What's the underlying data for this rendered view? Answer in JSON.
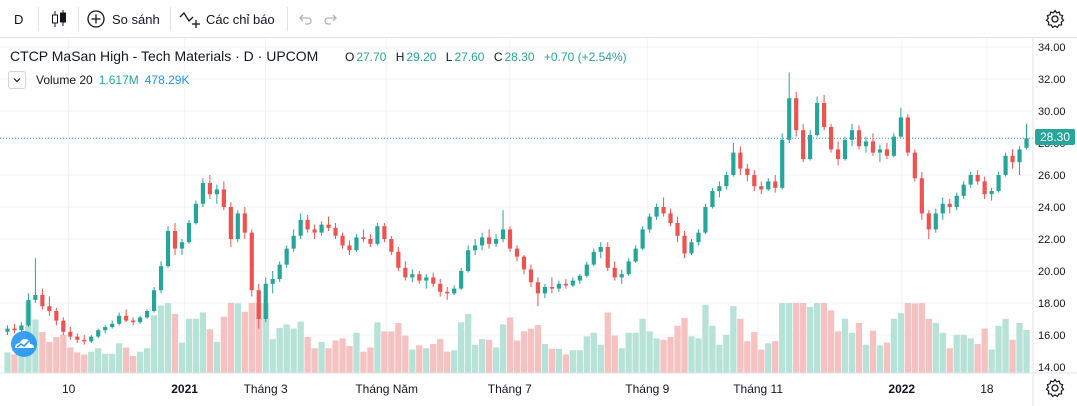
{
  "toolbar": {
    "interval": "D",
    "compare_label": "So sánh",
    "indicators_label": "Các chỉ báo",
    "icons": [
      "candles-icon",
      "plus-circle-icon",
      "indicators-icon",
      "undo-icon",
      "redo-icon",
      "settings-icon"
    ]
  },
  "legend": {
    "title": "CTCP MaSan High - Tech Materials · D · UPCOM",
    "o_label": "O",
    "o": "27.70",
    "h_label": "H",
    "h": "29.20",
    "l_label": "L",
    "l": "27.60",
    "c_label": "C",
    "c": "28.30",
    "change": "+0.70 (+2.54%)",
    "volume_label": "Volume 20",
    "volume_value": "1.617M",
    "volume_ma": "478.29K"
  },
  "price_tag": "28.30",
  "colors": {
    "up": "#26a69a",
    "down": "#ef5350",
    "up_vol": "#b7e2d7",
    "down_vol": "#f6c1c1",
    "grid": "#f0f3fa",
    "axis_text": "#131722"
  },
  "chart_data": {
    "type": "candlestick",
    "y_axis_ticks": [
      "14.00",
      "16.00",
      "18.00",
      "20.00",
      "22.00",
      "24.00",
      "26.00",
      "28.00",
      "30.00",
      "32.00",
      "34.00"
    ],
    "x_axis_ticks": [
      {
        "label": "10",
        "bold": false
      },
      {
        "label": "2021",
        "bold": true
      },
      {
        "label": "Tháng 3",
        "bold": false
      },
      {
        "label": "Tháng Năm",
        "bold": false
      },
      {
        "label": "Tháng 7",
        "bold": false
      },
      {
        "label": "Tháng 9",
        "bold": false
      },
      {
        "label": "Tháng 11",
        "bold": false
      },
      {
        "label": "2022",
        "bold": true
      },
      {
        "label": "18",
        "bold": false
      }
    ],
    "ylim": [
      14,
      34
    ],
    "last_close": 28.3,
    "candles": [
      [
        16.2,
        16.6,
        16.0,
        16.4
      ],
      [
        16.4,
        16.7,
        16.1,
        16.3
      ],
      [
        16.3,
        16.8,
        16.2,
        16.6
      ],
      [
        16.6,
        18.6,
        16.5,
        18.2
      ],
      [
        18.2,
        20.8,
        18.0,
        18.5
      ],
      [
        18.5,
        18.9,
        17.6,
        17.8
      ],
      [
        17.8,
        18.4,
        17.2,
        17.5
      ],
      [
        17.5,
        17.7,
        16.6,
        16.9
      ],
      [
        16.9,
        17.1,
        16.0,
        16.2
      ],
      [
        16.2,
        16.5,
        15.7,
        15.9
      ],
      [
        15.9,
        16.1,
        15.5,
        15.7
      ],
      [
        15.7,
        16.0,
        15.4,
        15.6
      ],
      [
        15.6,
        16.0,
        15.5,
        15.9
      ],
      [
        15.9,
        16.4,
        15.8,
        16.3
      ],
      [
        16.3,
        16.6,
        16.1,
        16.5
      ],
      [
        16.5,
        16.9,
        16.4,
        16.7
      ],
      [
        16.7,
        17.4,
        16.6,
        17.2
      ],
      [
        17.2,
        17.6,
        16.8,
        16.9
      ],
      [
        16.9,
        17.1,
        16.6,
        16.8
      ],
      [
        16.8,
        17.2,
        16.7,
        17.1
      ],
      [
        17.1,
        17.6,
        17.0,
        17.5
      ],
      [
        17.5,
        19.0,
        17.4,
        18.8
      ],
      [
        18.8,
        20.6,
        18.6,
        20.3
      ],
      [
        20.3,
        22.8,
        20.2,
        22.5
      ],
      [
        22.5,
        23.0,
        21.0,
        21.4
      ],
      [
        21.4,
        22.0,
        21.0,
        21.8
      ],
      [
        21.8,
        23.2,
        21.7,
        23.0
      ],
      [
        23.0,
        24.4,
        22.9,
        24.2
      ],
      [
        24.2,
        25.8,
        24.0,
        25.5
      ],
      [
        25.5,
        26.0,
        24.5,
        24.8
      ],
      [
        24.8,
        25.4,
        24.2,
        25.1
      ],
      [
        25.1,
        25.6,
        23.8,
        24.0
      ],
      [
        24.0,
        24.3,
        21.5,
        22.0
      ],
      [
        22.0,
        23.8,
        21.8,
        23.6
      ],
      [
        23.6,
        24.0,
        22.0,
        22.4
      ],
      [
        22.4,
        22.6,
        18.4,
        18.8
      ],
      [
        18.8,
        19.2,
        16.4,
        17.0
      ],
      [
        17.0,
        19.6,
        16.8,
        19.2
      ],
      [
        19.2,
        20.0,
        18.6,
        19.5
      ],
      [
        19.5,
        20.6,
        19.3,
        20.4
      ],
      [
        20.4,
        21.6,
        20.2,
        21.4
      ],
      [
        21.4,
        22.6,
        21.2,
        22.2
      ],
      [
        22.2,
        23.6,
        22.0,
        23.2
      ],
      [
        23.2,
        23.5,
        22.4,
        22.6
      ],
      [
        22.6,
        22.9,
        22.0,
        22.4
      ],
      [
        22.4,
        23.1,
        22.2,
        22.9
      ],
      [
        22.9,
        23.4,
        22.5,
        22.7
      ],
      [
        22.7,
        23.0,
        22.0,
        22.2
      ],
      [
        22.2,
        22.4,
        21.4,
        21.6
      ],
      [
        21.6,
        21.9,
        21.0,
        21.3
      ],
      [
        21.3,
        22.3,
        21.2,
        22.1
      ],
      [
        22.1,
        22.6,
        21.8,
        22.0
      ],
      [
        22.0,
        22.3,
        21.5,
        21.7
      ],
      [
        21.7,
        23.0,
        21.6,
        22.8
      ],
      [
        22.8,
        23.0,
        21.8,
        22.0
      ],
      [
        22.0,
        22.2,
        21.0,
        21.2
      ],
      [
        21.2,
        21.5,
        20.0,
        20.2
      ],
      [
        20.2,
        20.6,
        19.4,
        19.6
      ],
      [
        19.6,
        20.1,
        19.3,
        19.8
      ],
      [
        19.8,
        20.0,
        19.2,
        19.4
      ],
      [
        19.4,
        19.8,
        18.9,
        19.6
      ],
      [
        19.6,
        19.9,
        19.0,
        19.2
      ],
      [
        19.2,
        19.5,
        18.4,
        18.7
      ],
      [
        18.7,
        19.0,
        18.2,
        18.6
      ],
      [
        18.6,
        19.1,
        18.5,
        18.9
      ],
      [
        18.9,
        20.2,
        18.8,
        20.0
      ],
      [
        20.0,
        21.6,
        19.9,
        21.3
      ],
      [
        21.3,
        22.0,
        21.0,
        21.6
      ],
      [
        21.6,
        22.4,
        21.3,
        22.1
      ],
      [
        22.1,
        22.6,
        21.4,
        21.7
      ],
      [
        21.7,
        22.3,
        21.5,
        22.0
      ],
      [
        22.0,
        23.8,
        21.8,
        22.6
      ],
      [
        22.6,
        22.8,
        21.2,
        21.4
      ],
      [
        21.4,
        21.6,
        20.6,
        20.9
      ],
      [
        20.9,
        21.0,
        19.8,
        20.1
      ],
      [
        20.1,
        20.4,
        19.0,
        19.3
      ],
      [
        19.3,
        19.6,
        17.8,
        18.6
      ],
      [
        18.6,
        19.2,
        18.3,
        19.0
      ],
      [
        19.0,
        19.6,
        18.6,
        18.9
      ],
      [
        18.9,
        19.4,
        18.7,
        19.2
      ],
      [
        19.2,
        19.5,
        18.9,
        19.1
      ],
      [
        19.1,
        19.6,
        19.0,
        19.4
      ],
      [
        19.4,
        19.8,
        19.2,
        19.7
      ],
      [
        19.7,
        20.6,
        19.6,
        20.4
      ],
      [
        20.4,
        21.4,
        20.3,
        21.2
      ],
      [
        21.2,
        21.8,
        20.8,
        21.5
      ],
      [
        21.5,
        21.8,
        20.0,
        20.2
      ],
      [
        20.2,
        20.6,
        19.4,
        19.6
      ],
      [
        19.6,
        20.1,
        19.2,
        19.8
      ],
      [
        19.8,
        20.8,
        19.7,
        20.6
      ],
      [
        20.6,
        21.6,
        20.5,
        21.4
      ],
      [
        21.4,
        22.8,
        21.3,
        22.6
      ],
      [
        22.6,
        23.6,
        22.4,
        23.4
      ],
      [
        23.4,
        24.2,
        23.2,
        24.0
      ],
      [
        24.0,
        24.6,
        23.4,
        23.6
      ],
      [
        23.6,
        23.9,
        22.8,
        23.0
      ],
      [
        23.0,
        23.4,
        21.8,
        22.2
      ],
      [
        22.2,
        22.5,
        20.8,
        21.1
      ],
      [
        21.1,
        22.0,
        21.0,
        21.8
      ],
      [
        21.8,
        22.6,
        21.6,
        22.4
      ],
      [
        22.4,
        24.2,
        22.3,
        24.0
      ],
      [
        24.0,
        25.2,
        23.9,
        25.0
      ],
      [
        25.0,
        25.6,
        24.6,
        25.3
      ],
      [
        25.3,
        26.2,
        25.1,
        26.0
      ],
      [
        26.0,
        28.0,
        25.9,
        27.4
      ],
      [
        27.4,
        27.8,
        26.0,
        26.4
      ],
      [
        26.4,
        26.7,
        25.6,
        26.0
      ],
      [
        26.0,
        26.3,
        25.0,
        25.3
      ],
      [
        25.3,
        25.6,
        24.8,
        25.1
      ],
      [
        25.1,
        25.8,
        25.0,
        25.6
      ],
      [
        25.6,
        26.0,
        24.9,
        25.2
      ],
      [
        25.2,
        28.6,
        25.1,
        28.2
      ],
      [
        28.2,
        32.4,
        28.0,
        30.8
      ],
      [
        30.8,
        31.2,
        28.4,
        28.8
      ],
      [
        28.8,
        29.2,
        26.8,
        27.0
      ],
      [
        27.0,
        28.8,
        26.9,
        28.5
      ],
      [
        28.5,
        30.9,
        28.4,
        30.5
      ],
      [
        30.5,
        31.0,
        28.8,
        29.0
      ],
      [
        29.0,
        29.2,
        27.4,
        27.6
      ],
      [
        27.6,
        28.1,
        26.6,
        27.0
      ],
      [
        27.0,
        28.4,
        26.9,
        28.2
      ],
      [
        28.2,
        29.2,
        27.8,
        28.8
      ],
      [
        28.8,
        29.1,
        27.6,
        27.8
      ],
      [
        27.8,
        28.4,
        27.4,
        28.1
      ],
      [
        28.1,
        28.6,
        27.2,
        27.4
      ],
      [
        27.4,
        27.9,
        26.8,
        27.6
      ],
      [
        27.6,
        28.0,
        27.0,
        27.2
      ],
      [
        27.2,
        28.6,
        27.1,
        28.4
      ],
      [
        28.4,
        30.2,
        28.3,
        29.6
      ],
      [
        29.6,
        29.8,
        27.2,
        27.4
      ],
      [
        27.4,
        27.6,
        25.6,
        25.8
      ],
      [
        25.8,
        26.2,
        23.2,
        23.6
      ],
      [
        23.6,
        23.8,
        22.0,
        22.6
      ],
      [
        22.6,
        23.9,
        22.4,
        23.6
      ],
      [
        23.6,
        24.6,
        23.2,
        24.2
      ],
      [
        24.2,
        24.5,
        23.6,
        24.0
      ],
      [
        24.0,
        24.9,
        23.8,
        24.7
      ],
      [
        24.7,
        25.6,
        24.5,
        25.4
      ],
      [
        25.4,
        26.2,
        25.2,
        26.0
      ],
      [
        26.0,
        26.3,
        25.4,
        25.6
      ],
      [
        25.6,
        25.9,
        24.5,
        24.8
      ],
      [
        24.8,
        25.2,
        24.4,
        25.0
      ],
      [
        25.0,
        26.2,
        24.9,
        26.0
      ],
      [
        26.0,
        27.4,
        25.9,
        27.2
      ],
      [
        27.2,
        27.6,
        26.4,
        26.8
      ],
      [
        26.8,
        27.8,
        26.0,
        27.6
      ],
      [
        27.7,
        29.2,
        27.6,
        28.3
      ]
    ]
  }
}
